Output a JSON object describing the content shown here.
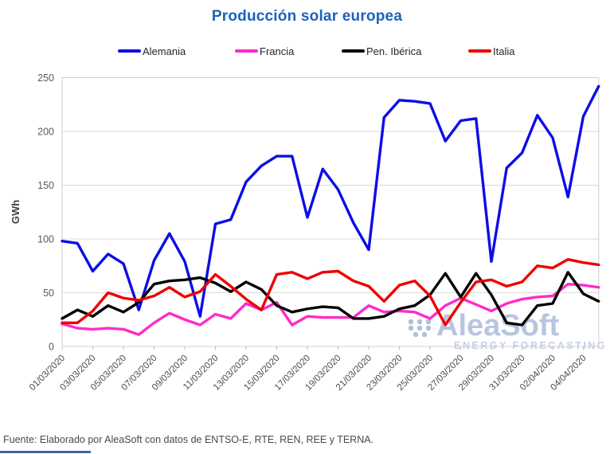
{
  "title": "Producción solar europea",
  "legend": {
    "items": [
      {
        "label": "Alemania",
        "color": "#0d0de8"
      },
      {
        "label": "Francia",
        "color": "#ff2bc9"
      },
      {
        "label": "Pen. Ibérica",
        "color": "#000000"
      },
      {
        "label": "Italia",
        "color": "#ee0000"
      }
    ]
  },
  "watermark": {
    "brand": "AleaSoft",
    "tagline": "ENERGY FORECASTING"
  },
  "footer": {
    "text": "Fuente: Elaborado por AleaSoft con datos de ENTSO-E, RTE, REN, REE y TERNA."
  },
  "chart_data": {
    "type": "line",
    "title": "Producción solar europea",
    "xlabel": "",
    "ylabel": "GWh",
    "ylim": [
      0,
      250
    ],
    "y_ticks": [
      0,
      50,
      100,
      150,
      200,
      250
    ],
    "grid": true,
    "legend_position": "top",
    "x": [
      "01/03/2020",
      "02/03/2020",
      "03/03/2020",
      "04/03/2020",
      "05/03/2020",
      "06/03/2020",
      "07/03/2020",
      "08/03/2020",
      "09/03/2020",
      "10/03/2020",
      "11/03/2020",
      "12/03/2020",
      "13/03/2020",
      "14/03/2020",
      "15/03/2020",
      "16/03/2020",
      "17/03/2020",
      "18/03/2020",
      "19/03/2020",
      "20/03/2020",
      "21/03/2020",
      "22/03/2020",
      "23/03/2020",
      "24/03/2020",
      "25/03/2020",
      "26/03/2020",
      "27/03/2020",
      "28/03/2020",
      "29/03/2020",
      "30/03/2020",
      "31/03/2020",
      "01/04/2020",
      "02/04/2020",
      "03/04/2020",
      "04/04/2020",
      "05/04/2020"
    ],
    "x_tick_labels": [
      "01/03/2020",
      "03/03/2020",
      "05/03/2020",
      "07/03/2020",
      "09/03/2020",
      "11/03/2020",
      "13/03/2020",
      "15/03/2020",
      "17/03/2020",
      "19/03/2020",
      "21/03/2020",
      "23/03/2020",
      "25/03/2020",
      "27/03/2020",
      "29/03/2020",
      "31/03/2020",
      "02/04/2020",
      "04/04/2020"
    ],
    "series": [
      {
        "name": "Alemania",
        "color": "#0d0de8",
        "values": [
          98,
          96,
          70,
          86,
          77,
          34,
          80,
          105,
          79,
          28,
          114,
          118,
          153,
          168,
          177,
          177,
          120,
          165,
          146,
          115,
          90,
          213,
          229,
          228,
          226,
          191,
          210,
          212,
          79,
          166,
          180,
          215,
          194,
          139,
          214,
          242
        ]
      },
      {
        "name": "Francia",
        "color": "#ff2bc9",
        "values": [
          21,
          17,
          16,
          17,
          16,
          11,
          22,
          31,
          25,
          20,
          30,
          26,
          40,
          34,
          41,
          20,
          28,
          27,
          27,
          27,
          38,
          32,
          33,
          32,
          26,
          38,
          45,
          39,
          33,
          40,
          44,
          46,
          47,
          58,
          57,
          55
        ]
      },
      {
        "name": "Pen. Ibérica",
        "color": "#000000",
        "values": [
          26,
          34,
          28,
          38,
          32,
          41,
          58,
          61,
          62,
          64,
          59,
          51,
          60,
          53,
          38,
          32,
          35,
          37,
          36,
          26,
          26,
          28,
          35,
          38,
          48,
          68,
          46,
          68,
          48,
          22,
          20,
          38,
          40,
          69,
          49,
          42
        ]
      },
      {
        "name": "Italia",
        "color": "#ee0000",
        "values": [
          22,
          22,
          33,
          50,
          45,
          43,
          47,
          55,
          46,
          51,
          67,
          56,
          44,
          34,
          67,
          69,
          63,
          69,
          70,
          61,
          56,
          42,
          57,
          61,
          47,
          20,
          41,
          60,
          62,
          56,
          60,
          75,
          73,
          81,
          78,
          76
        ]
      }
    ]
  }
}
